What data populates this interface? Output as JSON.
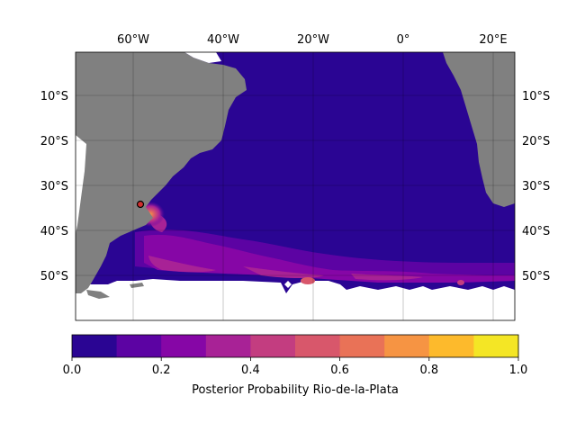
{
  "map": {
    "lon_labels": [
      "60°W",
      "40°W",
      "20°W",
      "0°",
      "20°E"
    ],
    "lat_labels": [
      "10°S",
      "20°S",
      "30°S",
      "40°S",
      "50°S"
    ],
    "lon_range": [
      -74,
      24
    ],
    "lat_range": [
      -60,
      0
    ],
    "land_color": "#808080",
    "ocean_base_color": "#2a0593",
    "grid": true,
    "marker": {
      "lon": -58.5,
      "lat": -34.3,
      "fill": "#d12f2f",
      "stroke": "#000000"
    }
  },
  "colorbar": {
    "label": "Posterior Probability Rio-de-la-Plata",
    "ticks": [
      "0.0",
      "0.2",
      "0.4",
      "0.6",
      "0.8",
      "1.0"
    ],
    "bins": [
      0,
      0.1,
      0.2,
      0.3,
      0.4,
      0.5,
      0.6,
      0.7,
      0.8,
      0.9,
      1.0
    ],
    "colors": [
      "#2a0593",
      "#5c03a3",
      "#8606a6",
      "#a82296",
      "#c33d80",
      "#d8576b",
      "#e97257",
      "#f69443",
      "#fdba2c",
      "#f4e625"
    ]
  }
}
